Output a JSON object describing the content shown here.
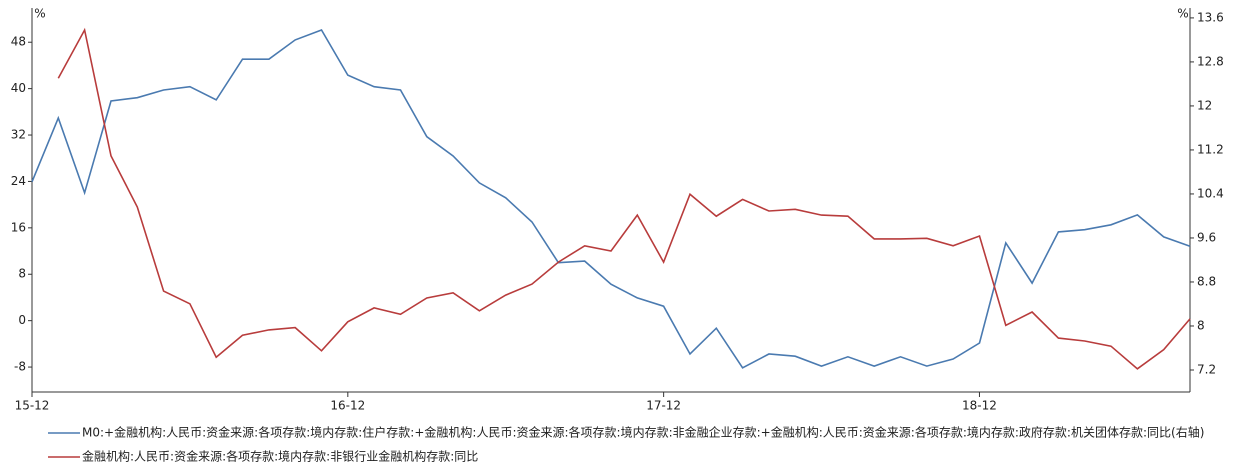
{
  "chart_data": {
    "type": "line",
    "y_label": "%",
    "y2_label": "%",
    "categories": [
      "15-12",
      null,
      null,
      null,
      null,
      null,
      null,
      null,
      null,
      null,
      null,
      null,
      "16-12",
      null,
      null,
      null,
      null,
      null,
      null,
      null,
      null,
      null,
      null,
      null,
      "17-12",
      null,
      null,
      null,
      null,
      null,
      null,
      null,
      null,
      null,
      null,
      null,
      "18-12",
      null,
      null,
      null,
      null,
      null,
      null,
      null,
      null
    ],
    "ylim": [
      -12.3,
      53.9
    ],
    "yticks": [
      -8,
      0,
      8,
      16,
      24,
      32,
      40,
      48
    ],
    "y2lim": [
      6.8,
      13.78
    ],
    "y2ticks": [
      7.2,
      8.0,
      8.8,
      9.6,
      10.4,
      11.2,
      12.0,
      12.8,
      13.6
    ],
    "series": [
      {
        "name": "M0:+金融机构:人民币:资金来源:各项存款:境内存款:住户存款:+金融机构:人民币:资金来源:各项存款:境内存款:非金融企业存款:+金融机构:人民币:资金来源:各项存款:境内存款:政府存款:机关团体存款:同比(右轴)",
        "color": "#4a7ab0",
        "axis": "y2",
        "values": [
          10.62,
          11.78,
          10.42,
          12.09,
          12.15,
          12.29,
          12.35,
          12.11,
          12.85,
          12.85,
          13.2,
          13.38,
          12.56,
          12.35,
          12.29,
          11.44,
          11.09,
          10.6,
          10.33,
          9.89,
          9.15,
          9.18,
          8.76,
          8.51,
          8.36,
          7.49,
          7.96,
          7.24,
          7.49,
          7.45,
          7.27,
          7.44,
          7.27,
          7.44,
          7.27,
          7.4,
          7.69,
          9.51,
          8.78,
          9.71,
          9.75,
          9.84,
          10.02,
          9.62,
          9.45
        ]
      },
      {
        "name": "金融机构:人民币:资金来源:各项存款:境内存款:非银行业金融机构存款:同比",
        "color": "#b83c3c",
        "values": [
          null,
          41.8,
          50.1,
          28.4,
          19.6,
          5.1,
          2.9,
          -6.3,
          -2.5,
          -1.6,
          -1.2,
          -5.2,
          -0.2,
          2.2,
          1.1,
          3.9,
          4.8,
          1.7,
          4.4,
          6.3,
          10.1,
          12.9,
          12.0,
          18.2,
          10.1,
          21.8,
          18.0,
          20.9,
          18.9,
          19.2,
          18.2,
          18.0,
          14.1,
          14.1,
          14.2,
          12.9,
          14.6,
          -0.8,
          1.5,
          -3.0,
          -3.5,
          -4.4,
          -8.3,
          -5.0,
          0.3
        ]
      }
    ]
  }
}
